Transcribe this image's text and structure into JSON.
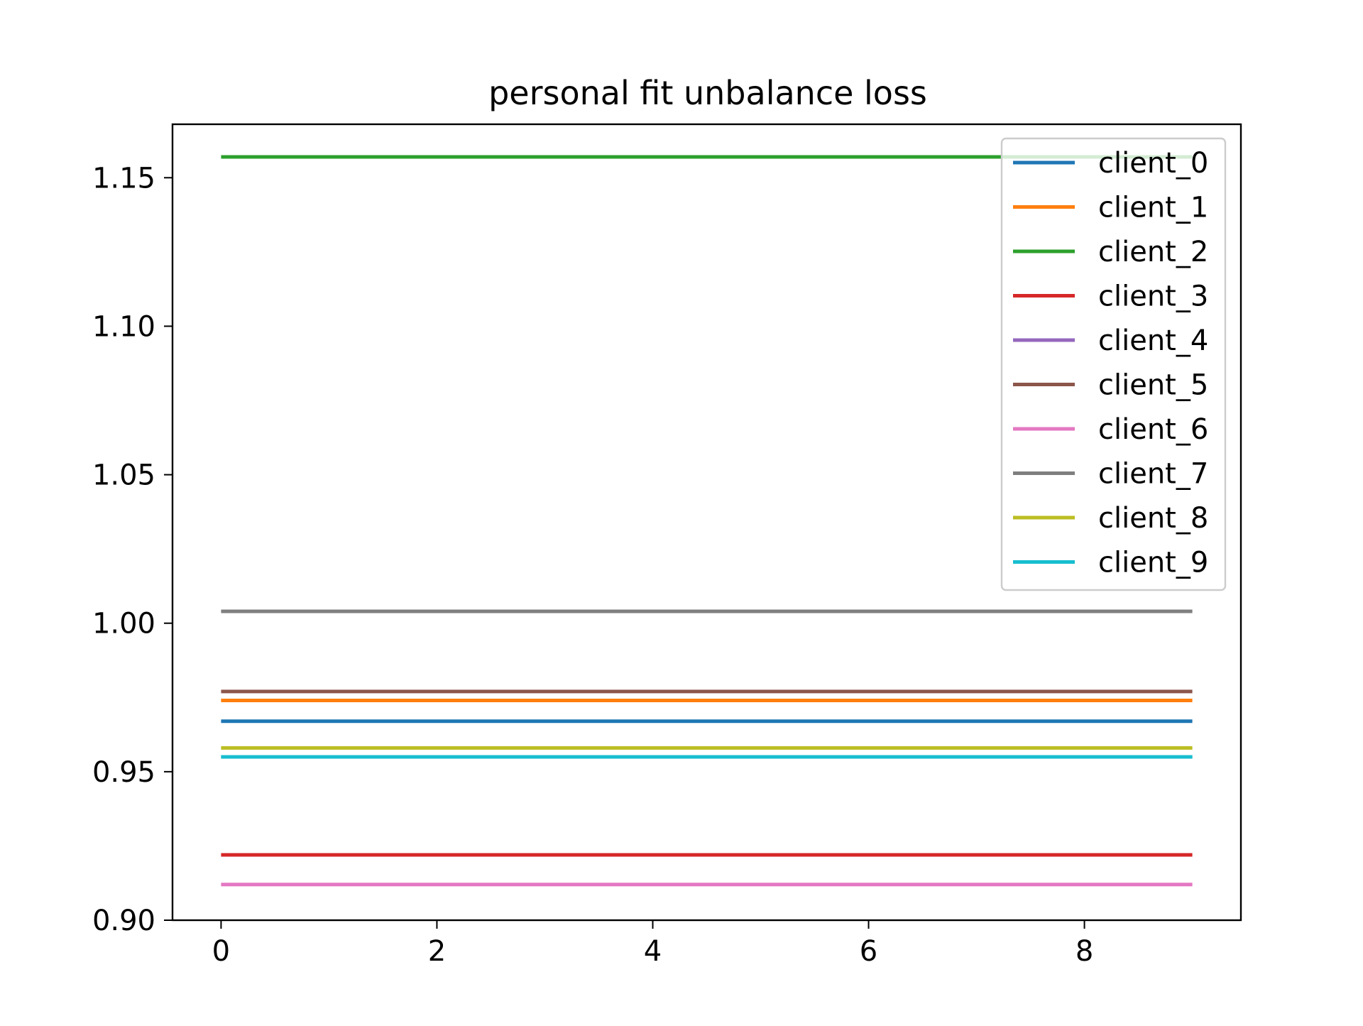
{
  "chart_data": {
    "type": "line",
    "title": "personal fit unbalance loss",
    "xlabel": "",
    "ylabel": "",
    "x": [
      0,
      1,
      2,
      3,
      4,
      5,
      6,
      7,
      8,
      9
    ],
    "xlim": [
      -0.45,
      9.45
    ],
    "ylim": [
      0.9,
      1.168
    ],
    "xticks": [
      0,
      2,
      4,
      6,
      8
    ],
    "xtick_labels": [
      "0",
      "2",
      "4",
      "6",
      "8"
    ],
    "yticks": [
      0.9,
      0.95,
      1.0,
      1.05,
      1.1,
      1.15
    ],
    "ytick_labels": [
      "0.90",
      "0.95",
      "1.00",
      "1.05",
      "1.10",
      "1.15"
    ],
    "grid": false,
    "legend_position": "upper-right",
    "series": [
      {
        "name": "client_0",
        "color": "#1f77b4",
        "values": [
          0.967,
          0.967,
          0.967,
          0.967,
          0.967,
          0.967,
          0.967,
          0.967,
          0.967,
          0.967
        ]
      },
      {
        "name": "client_1",
        "color": "#ff7f0e",
        "values": [
          0.974,
          0.974,
          0.974,
          0.974,
          0.974,
          0.974,
          0.974,
          0.974,
          0.974,
          0.974
        ]
      },
      {
        "name": "client_2",
        "color": "#2ca02c",
        "values": [
          1.157,
          1.157,
          1.157,
          1.157,
          1.157,
          1.157,
          1.157,
          1.157,
          1.157,
          1.157
        ]
      },
      {
        "name": "client_3",
        "color": "#d62728",
        "values": [
          0.922,
          0.922,
          0.922,
          0.922,
          0.922,
          0.922,
          0.922,
          0.922,
          0.922,
          0.922
        ]
      },
      {
        "name": "client_4",
        "color": "#9467bd",
        "values": [
          0.955,
          0.955,
          0.955,
          0.955,
          0.955,
          0.955,
          0.955,
          0.955,
          0.955,
          0.955
        ]
      },
      {
        "name": "client_5",
        "color": "#8c564b",
        "values": [
          0.977,
          0.977,
          0.977,
          0.977,
          0.977,
          0.977,
          0.977,
          0.977,
          0.977,
          0.977
        ]
      },
      {
        "name": "client_6",
        "color": "#e377c2",
        "values": [
          0.912,
          0.912,
          0.912,
          0.912,
          0.912,
          0.912,
          0.912,
          0.912,
          0.912,
          0.912
        ]
      },
      {
        "name": "client_7",
        "color": "#7f7f7f",
        "values": [
          1.004,
          1.004,
          1.004,
          1.004,
          1.004,
          1.004,
          1.004,
          1.004,
          1.004,
          1.004
        ]
      },
      {
        "name": "client_8",
        "color": "#bcbd22",
        "values": [
          0.958,
          0.958,
          0.958,
          0.958,
          0.958,
          0.958,
          0.958,
          0.958,
          0.958,
          0.958
        ]
      },
      {
        "name": "client_9",
        "color": "#17becf",
        "values": [
          0.955,
          0.955,
          0.955,
          0.955,
          0.955,
          0.955,
          0.955,
          0.955,
          0.955,
          0.955
        ]
      }
    ]
  }
}
